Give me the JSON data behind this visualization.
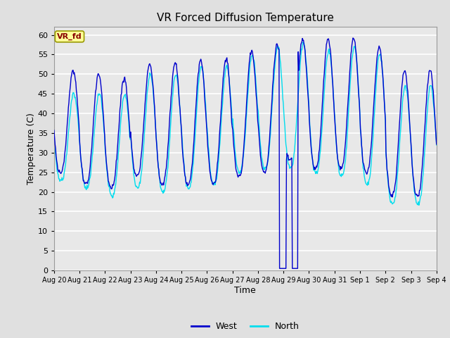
{
  "title": "VR Forced Diffusion Temperature",
  "xlabel": "Time",
  "ylabel": "Temperature (C)",
  "ylim": [
    0,
    62
  ],
  "yticks": [
    0,
    5,
    10,
    15,
    20,
    25,
    30,
    35,
    40,
    45,
    50,
    55,
    60
  ],
  "west_color": "#0000cc",
  "north_color": "#00ddee",
  "bg_color": "#e0e0e0",
  "plot_bg_color": "#e8e8e8",
  "grid_color": "#ffffff",
  "label_box_color": "#ffff99",
  "label_text_color": "#880000",
  "label_text": "VR_fd",
  "legend_west": "West",
  "legend_north": "North",
  "tick_labels": [
    "Aug 20",
    "Aug 21",
    "Aug 22",
    "Aug 23",
    "Aug 24",
    "Aug 25",
    "Aug 26",
    "Aug 27",
    "Aug 28",
    "Aug 29",
    "Aug 30",
    "Aug 31",
    "Sep 1",
    "Sep 2",
    "Sep 3",
    "Sep 4"
  ],
  "day_peaks_west": [
    51,
    50,
    49,
    52.5,
    53,
    53.5,
    54,
    56,
    57.5,
    59,
    59,
    59,
    57,
    51,
    51,
    51
  ],
  "day_peaks_north": [
    45,
    45,
    45,
    50,
    50,
    52,
    52,
    55,
    57,
    58,
    56,
    57,
    55,
    47,
    47,
    48
  ],
  "day_mins_west": [
    25,
    22,
    21,
    24,
    22,
    22,
    22,
    24,
    25,
    28,
    26,
    26,
    25,
    19,
    19,
    22
  ],
  "day_mins_north": [
    23,
    21,
    19,
    21,
    20,
    21,
    22,
    25,
    26,
    26,
    25,
    24,
    22,
    17,
    17,
    22
  ]
}
